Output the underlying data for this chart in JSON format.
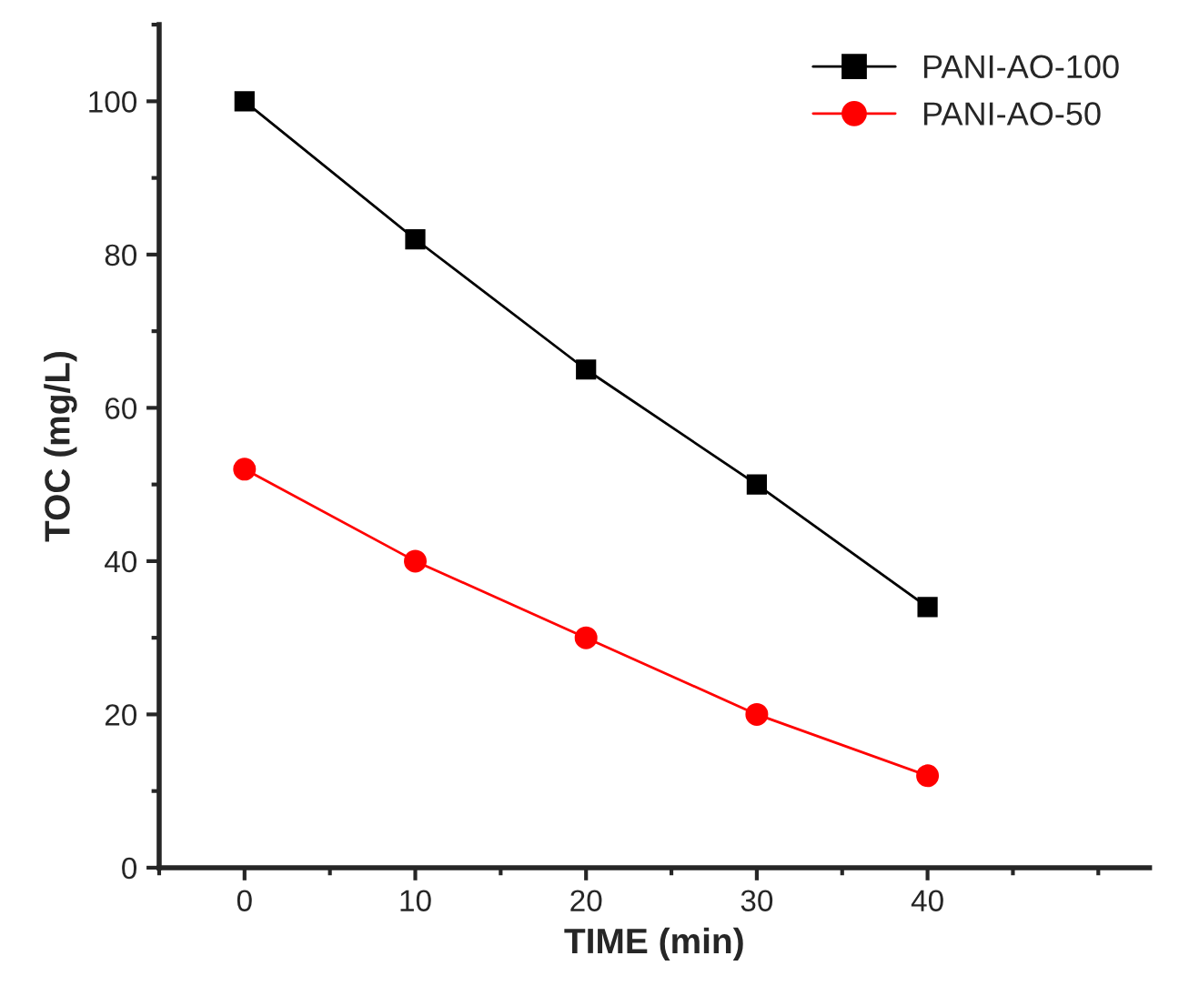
{
  "chart_data": {
    "type": "line",
    "xlabel": "TIME (min)",
    "ylabel": "TOC (mg/L)",
    "x": [
      0,
      10,
      20,
      30,
      40
    ],
    "series": [
      {
        "name": "PANI-AO-100",
        "color": "#000000",
        "marker": "square",
        "values": [
          100,
          82,
          65,
          50,
          34
        ]
      },
      {
        "name": "PANI-AO-50",
        "color": "#ff0000",
        "marker": "circle",
        "values": [
          52,
          40,
          30,
          20,
          12
        ]
      }
    ],
    "xlim": [
      -5,
      53
    ],
    "ylim": [
      0,
      110
    ],
    "xticks": [
      0,
      10,
      20,
      30,
      40
    ],
    "yticks": [
      0,
      20,
      40,
      60,
      80,
      100
    ],
    "grid": false,
    "legend": "top right",
    "line_style": "solid"
  }
}
